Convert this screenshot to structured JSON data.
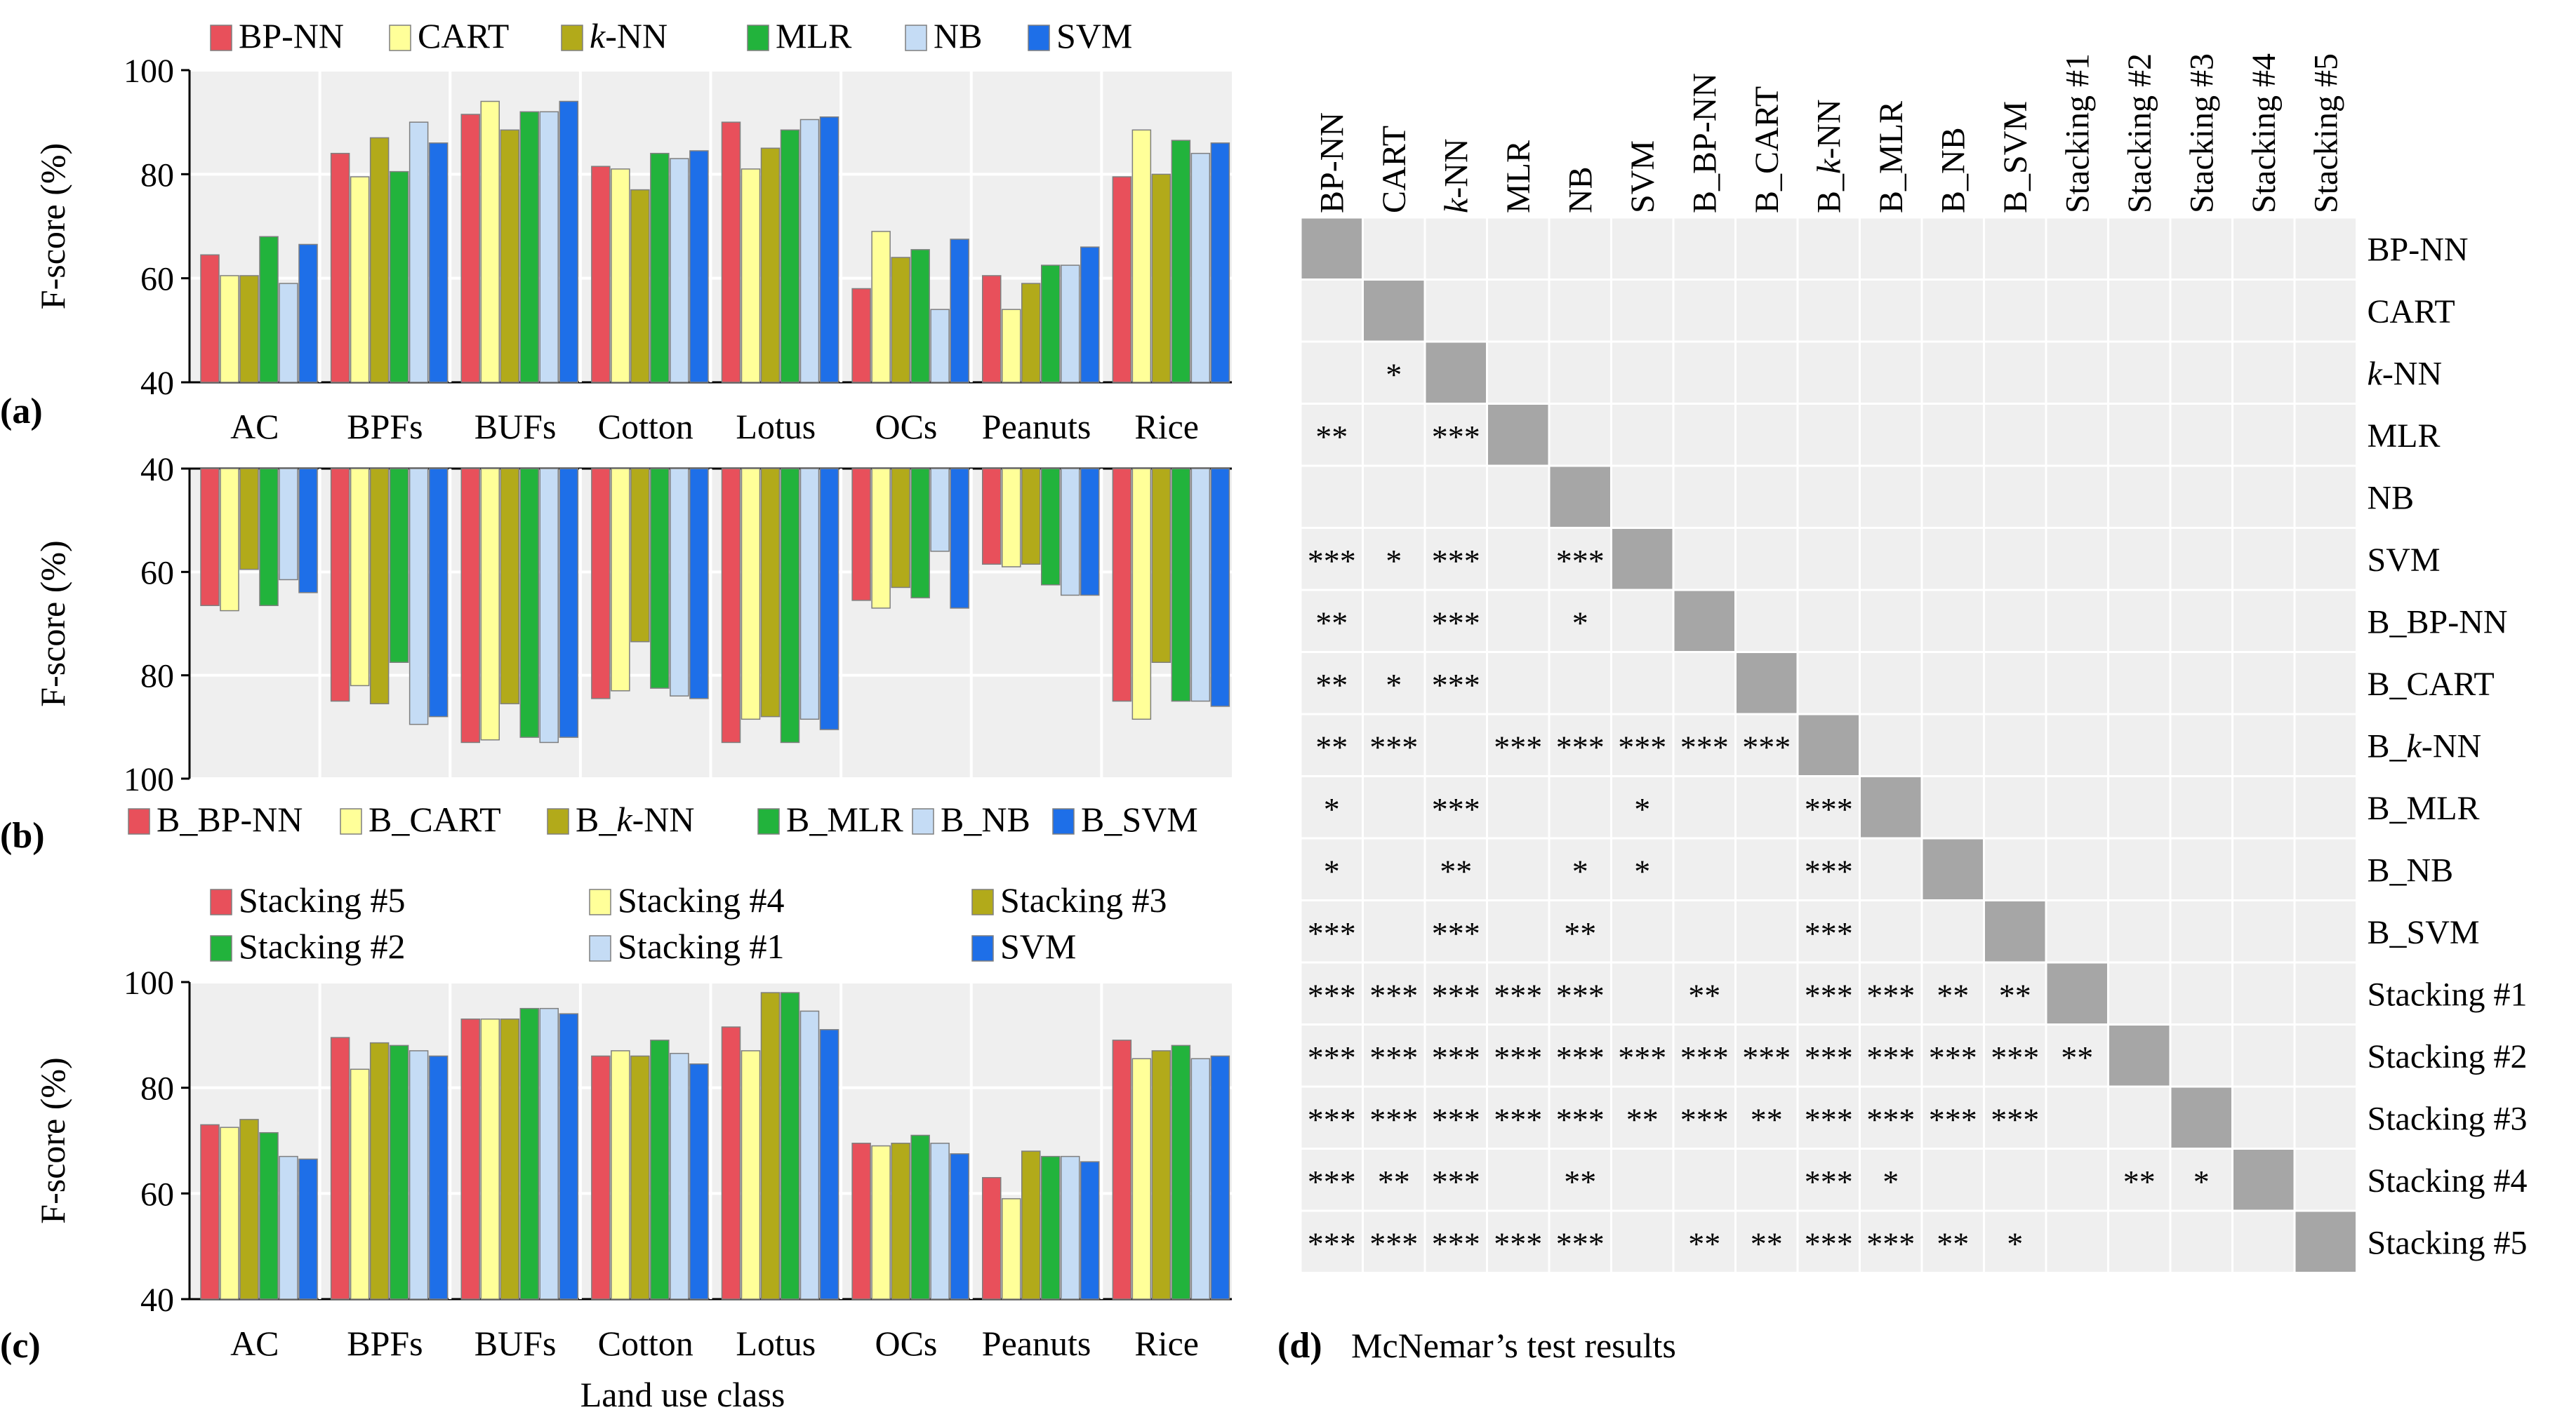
{
  "colors": {
    "series": [
      "#E8505B",
      "#FFFF99",
      "#B2AA1A",
      "#22B33C",
      "#C5DCF5",
      "#1E6FE8"
    ],
    "matrix_cell": "#EFEFEF",
    "matrix_diag": "#A6A6A6",
    "plot_bg": "#EFEFEF",
    "grid": "#FFFFFF"
  },
  "panel_labels": {
    "a": "(a)",
    "b": "(b)",
    "c": "(c)",
    "d": "(d)"
  },
  "panel_d_caption": "McNemar’s test  results",
  "chart_data": [
    {
      "id": "a",
      "type": "bar",
      "ylabel": "F-score (%)",
      "ylim": [
        40,
        100
      ],
      "yticks": [
        "40",
        "60",
        "80",
        "100"
      ],
      "grid": true,
      "legend_position": "top",
      "categories": [
        "AC",
        "BPFs",
        "BUFs",
        "Cotton",
        "Lotus",
        "OCs",
        "Peanuts",
        "Rice"
      ],
      "series": [
        {
          "name": "BP-NN",
          "name_italic": "",
          "name_suffix": "",
          "values": [
            64.5,
            84,
            91.5,
            81.5,
            90,
            58,
            60.5,
            79.5
          ]
        },
        {
          "name": "CART",
          "name_italic": "",
          "name_suffix": "",
          "values": [
            60.5,
            79.5,
            94,
            81,
            81,
            69,
            54,
            88.5
          ]
        },
        {
          "name": "",
          "name_italic": "k",
          "name_suffix": "-NN",
          "values": [
            60.5,
            87,
            88.5,
            77,
            85,
            64,
            59,
            80
          ]
        },
        {
          "name": "MLR",
          "name_italic": "",
          "name_suffix": "",
          "values": [
            68,
            80.5,
            92,
            84,
            88.5,
            65.5,
            62.5,
            86.5
          ]
        },
        {
          "name": "NB",
          "name_italic": "",
          "name_suffix": "",
          "values": [
            59,
            90,
            92,
            83,
            90.5,
            54,
            62.5,
            84
          ]
        },
        {
          "name": "SVM",
          "name_italic": "",
          "name_suffix": "",
          "values": [
            66.5,
            86,
            94,
            84.5,
            91,
            67.5,
            66,
            86
          ]
        }
      ]
    },
    {
      "id": "b",
      "type": "bar",
      "ylabel": "F-score (%)",
      "ylim": [
        40,
        100
      ],
      "y_inverted": true,
      "yticks": [
        "40",
        "60",
        "80",
        "100"
      ],
      "grid": true,
      "legend_position": "bottom",
      "categories": [
        "AC",
        "BPFs",
        "BUFs",
        "Cotton",
        "Lotus",
        "OCs",
        "Peanuts",
        "Rice"
      ],
      "series": [
        {
          "name": "B_BP-NN",
          "name_italic": "",
          "name_suffix": "",
          "values": [
            66.5,
            85,
            93,
            84.5,
            93,
            65.5,
            58.5,
            85
          ]
        },
        {
          "name": "B_CART",
          "name_italic": "",
          "name_suffix": "",
          "values": [
            67.5,
            82,
            92.5,
            83,
            88.5,
            67,
            59,
            88.5
          ]
        },
        {
          "name": "B_",
          "name_italic": "k",
          "name_suffix": "-NN",
          "values": [
            59.5,
            85.5,
            85.5,
            73.5,
            88,
            63,
            58.5,
            77.5
          ]
        },
        {
          "name": "B_MLR",
          "name_italic": "",
          "name_suffix": "",
          "values": [
            66.5,
            77.5,
            92,
            82.5,
            93,
            65,
            62.5,
            85
          ]
        },
        {
          "name": "B_NB",
          "name_italic": "",
          "name_suffix": "",
          "values": [
            61.5,
            89.5,
            93,
            84,
            88.5,
            56,
            64.5,
            85
          ]
        },
        {
          "name": "B_SVM",
          "name_italic": "",
          "name_suffix": "",
          "values": [
            64,
            88,
            92,
            84.5,
            90.5,
            67,
            64.5,
            86
          ]
        }
      ]
    },
    {
      "id": "c",
      "type": "bar",
      "ylabel": "F-score (%)",
      "xlabel": "Land use class",
      "ylim": [
        40,
        100
      ],
      "yticks": [
        "40",
        "60",
        "80",
        "100"
      ],
      "grid": true,
      "legend_position": "top",
      "categories": [
        "AC",
        "BPFs",
        "BUFs",
        "Cotton",
        "Lotus",
        "OCs",
        "Peanuts",
        "Rice"
      ],
      "series": [
        {
          "name": "Stacking #5",
          "name_italic": "",
          "name_suffix": "",
          "values": [
            73,
            89.5,
            93,
            86,
            91.5,
            69.5,
            63,
            89
          ]
        },
        {
          "name": "Stacking #4",
          "name_italic": "",
          "name_suffix": "",
          "values": [
            72.5,
            83.5,
            93,
            87,
            87,
            69,
            59,
            85.5
          ]
        },
        {
          "name": "Stacking #3",
          "name_italic": "",
          "name_suffix": "",
          "values": [
            74,
            88.5,
            93,
            86,
            98,
            69.5,
            68,
            87
          ]
        },
        {
          "name": "Stacking #2",
          "name_italic": "",
          "name_suffix": "",
          "values": [
            71.5,
            88,
            95,
            89,
            98,
            71,
            67,
            88
          ]
        },
        {
          "name": "Stacking #1",
          "name_italic": "",
          "name_suffix": "",
          "values": [
            67,
            87,
            95,
            86.5,
            94.5,
            69.5,
            67,
            85.5
          ]
        },
        {
          "name": "SVM",
          "name_italic": "",
          "name_suffix": "",
          "values": [
            66.5,
            86,
            94,
            84.5,
            91,
            67.5,
            66,
            86
          ]
        }
      ]
    },
    {
      "id": "d",
      "type": "table",
      "labels": [
        "BP-NN",
        "CART",
        "k-NN",
        "MLR",
        "NB",
        "SVM",
        "B_BP-NN",
        "B_CART",
        "B_k-NN",
        "B_MLR",
        "B_NB",
        "B_SVM",
        "Stacking #1",
        "Stacking #2",
        "Stacking #3",
        "Stacking #4",
        "Stacking #5"
      ],
      "label_parts": [
        [
          "BP-NN",
          "",
          ""
        ],
        [
          "CART",
          "",
          ""
        ],
        [
          "",
          "k",
          "-NN"
        ],
        [
          "MLR",
          "",
          ""
        ],
        [
          "NB",
          "",
          ""
        ],
        [
          "SVM",
          "",
          ""
        ],
        [
          "B_BP-NN",
          "",
          ""
        ],
        [
          "B_CART",
          "",
          ""
        ],
        [
          "B_",
          "k",
          "-NN"
        ],
        [
          "B_MLR",
          "",
          ""
        ],
        [
          "B_NB",
          "",
          ""
        ],
        [
          "B_SVM",
          "",
          ""
        ],
        [
          "Stacking #1",
          "",
          ""
        ],
        [
          "Stacking #2",
          "",
          ""
        ],
        [
          "Stacking #3",
          "",
          ""
        ],
        [
          "Stacking #4",
          "",
          ""
        ],
        [
          "Stacking #5",
          "",
          ""
        ]
      ],
      "rows": [
        [],
        [
          ""
        ],
        [
          "",
          "*"
        ],
        [
          "**",
          "",
          "***"
        ],
        [
          "",
          "",
          "",
          ""
        ],
        [
          "***",
          "*",
          "***",
          "",
          "***"
        ],
        [
          "**",
          "",
          "***",
          "",
          "*",
          ""
        ],
        [
          "**",
          "*",
          "***",
          "",
          "",
          "",
          ""
        ],
        [
          "**",
          "***",
          "",
          "***",
          "***",
          "***",
          "***",
          "***"
        ],
        [
          "*",
          "",
          "***",
          "",
          "",
          "*",
          "",
          "",
          "***"
        ],
        [
          "*",
          "",
          "**",
          "",
          "*",
          "*",
          "",
          "",
          "***",
          ""
        ],
        [
          "***",
          "",
          "***",
          "",
          "**",
          "",
          "",
          "",
          "***",
          "",
          ""
        ],
        [
          "***",
          "***",
          "***",
          "***",
          "***",
          "",
          "**",
          "",
          "***",
          "***",
          "**",
          "**"
        ],
        [
          "***",
          "***",
          "***",
          "***",
          "***",
          "***",
          "***",
          "***",
          "***",
          "***",
          "***",
          "***",
          "**"
        ],
        [
          "***",
          "***",
          "***",
          "***",
          "***",
          "**",
          "***",
          "**",
          "***",
          "***",
          "***",
          "***",
          "",
          ""
        ],
        [
          "***",
          "**",
          "***",
          "",
          "**",
          "",
          "",
          "",
          "***",
          "*",
          "",
          "",
          "",
          "**",
          "*"
        ],
        [
          "***",
          "***",
          "***",
          "***",
          "***",
          "",
          "**",
          "**",
          "***",
          "***",
          "**",
          "*",
          "",
          "",
          "",
          ""
        ]
      ]
    }
  ]
}
